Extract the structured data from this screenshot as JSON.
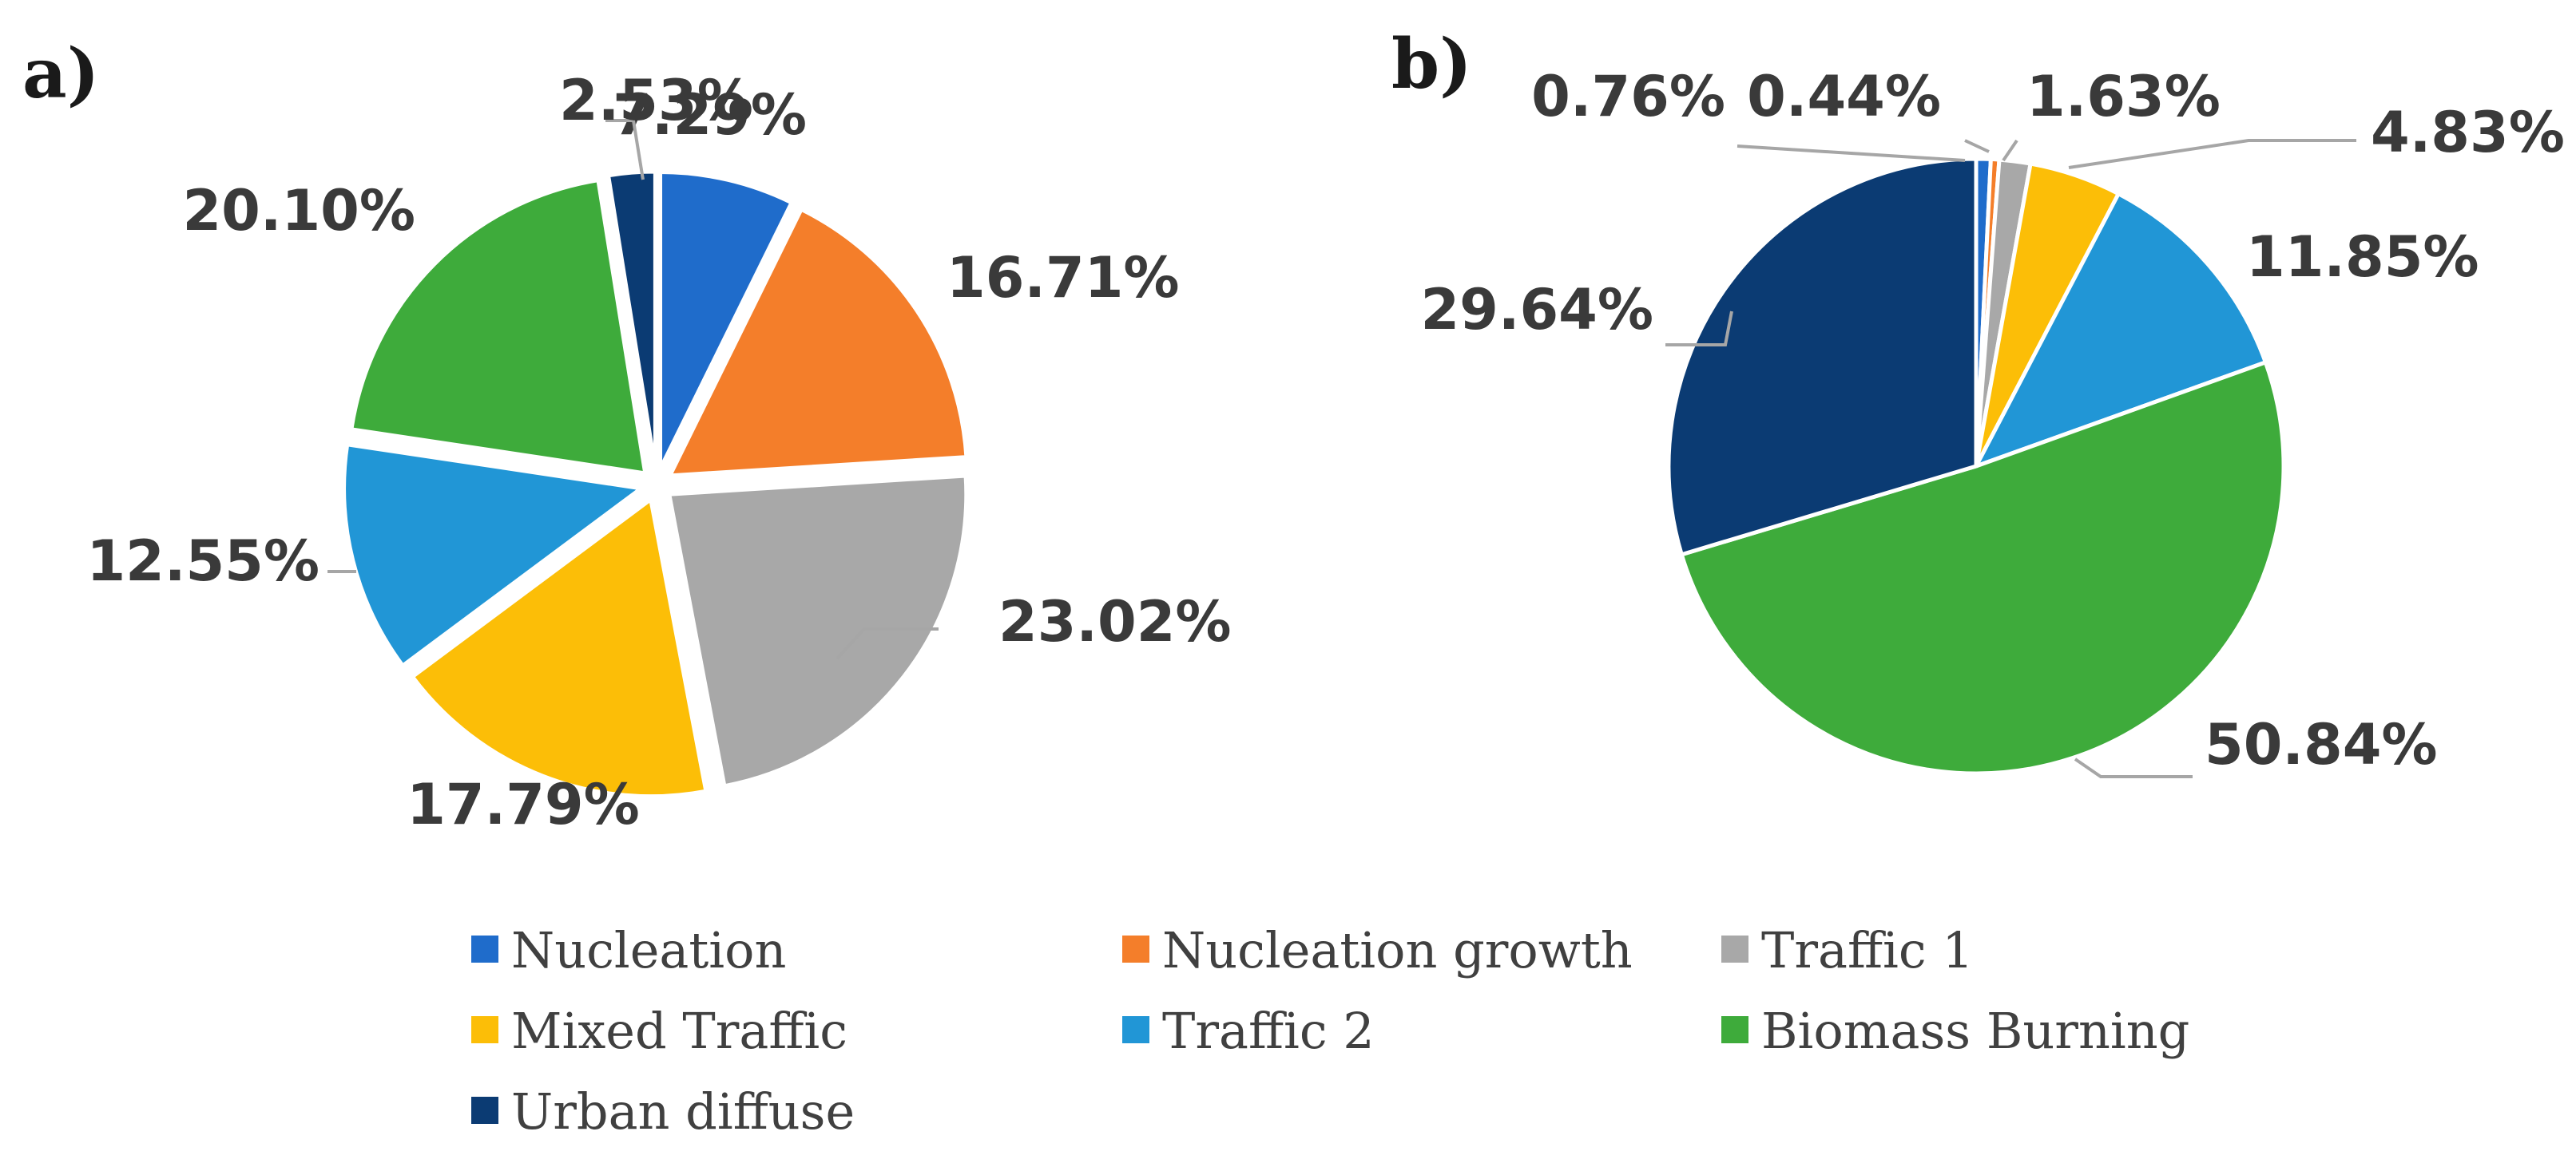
{
  "chart_data": [
    {
      "type": "pie",
      "panel": "a)",
      "exploded": true,
      "slices": [
        {
          "name": "Nucleation",
          "value": 7.29,
          "label": "7.29%",
          "color": "#1f6ccb"
        },
        {
          "name": "Nucleation growth",
          "value": 16.71,
          "label": "16.71%",
          "color": "#f47e2a"
        },
        {
          "name": "Traffic 1",
          "value": 23.02,
          "label": "23.02%",
          "color": "#a8a8a8"
        },
        {
          "name": "Mixed Traffic",
          "value": 17.79,
          "label": "17.79%",
          "color": "#fcbe07"
        },
        {
          "name": "Traffic 2",
          "value": 12.55,
          "label": "12.55%",
          "color": "#2196d6"
        },
        {
          "name": "Biomass Burning",
          "value": 20.1,
          "label": "20.10%",
          "color": "#3eab3b"
        },
        {
          "name": "Urban diffuse",
          "value": 2.53,
          "label": "2.53%",
          "color": "#0b3b73"
        }
      ]
    },
    {
      "type": "pie",
      "panel": "b)",
      "exploded": false,
      "slices": [
        {
          "name": "Nucleation",
          "value": 0.76,
          "label": "0.76%",
          "color": "#1f6ccb"
        },
        {
          "name": "Nucleation growth",
          "value": 0.44,
          "label": "0.44%",
          "color": "#f47e2a"
        },
        {
          "name": "Traffic 1",
          "value": 1.63,
          "label": "1.63%",
          "color": "#a8a8a8"
        },
        {
          "name": "Mixed Traffic",
          "value": 4.83,
          "label": "4.83%",
          "color": "#fcbe07"
        },
        {
          "name": "Traffic 2",
          "value": 11.85,
          "label": "11.85%",
          "color": "#2196d6"
        },
        {
          "name": "Biomass Burning",
          "value": 50.84,
          "label": "50.84%",
          "color": "#3eab3b"
        },
        {
          "name": "Urban diffuse",
          "value": 29.64,
          "label": "29.64%",
          "color": "#0b3b73"
        }
      ]
    }
  ],
  "legend": [
    {
      "label": "Nucleation",
      "color": "#1f6ccb"
    },
    {
      "label": "Nucleation growth",
      "color": "#f47e2a"
    },
    {
      "label": "Traffic 1",
      "color": "#a8a8a8"
    },
    {
      "label": "Mixed Traffic",
      "color": "#fcbe07"
    },
    {
      "label": "Traffic 2",
      "color": "#2196d6"
    },
    {
      "label": "Biomass Burning",
      "color": "#3eab3b"
    },
    {
      "label": "Urban diffuse",
      "color": "#0b3b73"
    }
  ]
}
